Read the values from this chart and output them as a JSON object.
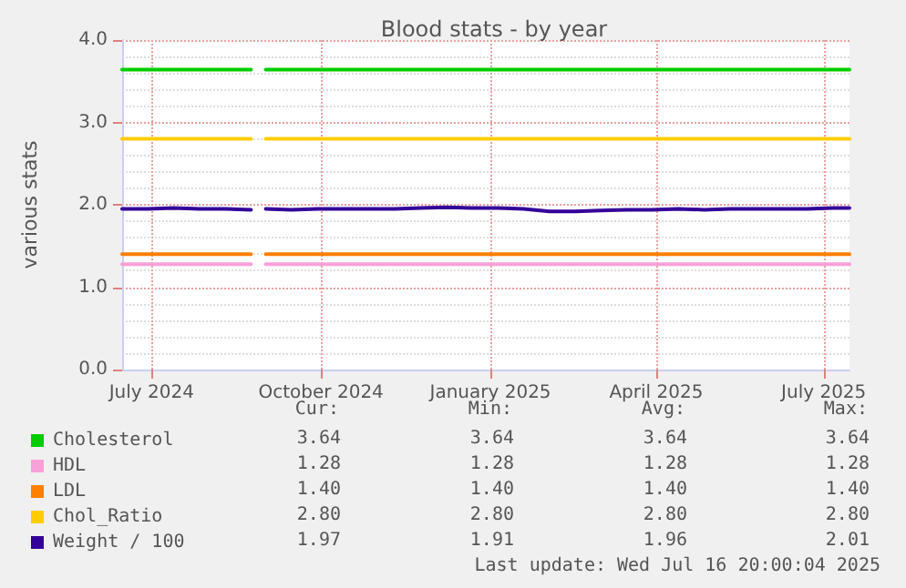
{
  "chart_data": {
    "type": "line",
    "title": "Blood stats - by year",
    "ylabel": "various stats",
    "x": [
      "2024-06-15",
      "2024-06-29",
      "2024-07-13",
      "2024-07-27",
      "2024-08-10",
      "2024-08-24",
      "2024-08-30",
      "2024-09-01",
      "2024-09-15",
      "2024-09-29",
      "2024-10-13",
      "2024-10-27",
      "2024-11-10",
      "2024-11-24",
      "2024-12-08",
      "2024-12-22",
      "2025-01-05",
      "2025-01-19",
      "2025-02-02",
      "2025-02-16",
      "2025-03-02",
      "2025-03-16",
      "2025-03-30",
      "2025-04-13",
      "2025-04-27",
      "2025-05-11",
      "2025-05-25",
      "2025-06-08",
      "2025-06-22",
      "2025-07-06",
      "2025-07-15"
    ],
    "series": [
      {
        "name": "Cholesterol",
        "color": "#00cc00",
        "values": [
          3.64,
          3.64,
          3.64,
          3.64,
          3.64,
          3.64,
          null,
          3.64,
          3.64,
          3.64,
          3.64,
          3.64,
          3.64,
          3.64,
          3.64,
          3.64,
          3.64,
          3.64,
          3.64,
          3.64,
          3.64,
          3.64,
          3.64,
          3.64,
          3.64,
          3.64,
          3.64,
          3.64,
          3.64,
          3.64,
          3.64
        ]
      },
      {
        "name": "HDL",
        "color": "#f8a0d8",
        "values": [
          1.28,
          1.28,
          1.28,
          1.28,
          1.28,
          1.28,
          null,
          1.28,
          1.28,
          1.28,
          1.28,
          1.28,
          1.28,
          1.28,
          1.28,
          1.28,
          1.28,
          1.28,
          1.28,
          1.28,
          1.28,
          1.28,
          1.28,
          1.28,
          1.28,
          1.28,
          1.28,
          1.28,
          1.28,
          1.28,
          1.28
        ]
      },
      {
        "name": "LDL",
        "color": "#ff7f00",
        "values": [
          1.4,
          1.4,
          1.4,
          1.4,
          1.4,
          1.4,
          null,
          1.4,
          1.4,
          1.4,
          1.4,
          1.4,
          1.4,
          1.4,
          1.4,
          1.4,
          1.4,
          1.4,
          1.4,
          1.4,
          1.4,
          1.4,
          1.4,
          1.4,
          1.4,
          1.4,
          1.4,
          1.4,
          1.4,
          1.4,
          1.4
        ]
      },
      {
        "name": "Chol_Ratio",
        "color": "#ffcc00",
        "values": [
          2.8,
          2.8,
          2.8,
          2.8,
          2.8,
          2.8,
          null,
          2.8,
          2.8,
          2.8,
          2.8,
          2.8,
          2.8,
          2.8,
          2.8,
          2.8,
          2.8,
          2.8,
          2.8,
          2.8,
          2.8,
          2.8,
          2.8,
          2.8,
          2.8,
          2.8,
          2.8,
          2.8,
          2.8,
          2.8,
          2.8
        ]
      },
      {
        "name": "Weight / 100",
        "color": "#330099",
        "values": [
          1.95,
          1.95,
          1.96,
          1.95,
          1.95,
          1.94,
          null,
          1.95,
          1.94,
          1.95,
          1.95,
          1.95,
          1.95,
          1.96,
          1.97,
          1.96,
          1.96,
          1.95,
          1.92,
          1.92,
          1.93,
          1.94,
          1.94,
          1.95,
          1.94,
          1.95,
          1.95,
          1.95,
          1.95,
          1.96,
          1.96
        ]
      }
    ],
    "xlim": [
      "2024-06-15",
      "2025-07-15"
    ],
    "xticks": [
      {
        "value": "2024-07-01",
        "label": "July 2024"
      },
      {
        "value": "2024-10-01",
        "label": "October 2024"
      },
      {
        "value": "2025-01-01",
        "label": "January 2025"
      },
      {
        "value": "2025-04-01",
        "label": "April 2025"
      },
      {
        "value": "2025-07-01",
        "label": "July 2025"
      }
    ],
    "ylim": [
      0,
      4
    ],
    "yticks": [
      {
        "value": 0,
        "label": "0.0"
      },
      {
        "value": 1,
        "label": "1.0"
      },
      {
        "value": 2,
        "label": "2.0"
      },
      {
        "value": 3,
        "label": "3.0"
      },
      {
        "value": 4,
        "label": "4.0"
      }
    ],
    "grid": true,
    "legend": "bottom left",
    "line_style": "solid",
    "annotations": [
      "Cur:",
      "Min:",
      "Avg:",
      "Max:",
      "3.64",
      "3.64",
      "3.64",
      "3.64",
      "1.28",
      "1.28",
      "1.28",
      "1.28",
      "1.40",
      "1.40",
      "1.40",
      "1.40",
      "2.80",
      "2.80",
      "2.80",
      "2.80",
      "1.97",
      "1.91",
      "1.96",
      "2.01",
      "Last update: Wed Jul 16 20:00:04 2025"
    ]
  }
}
